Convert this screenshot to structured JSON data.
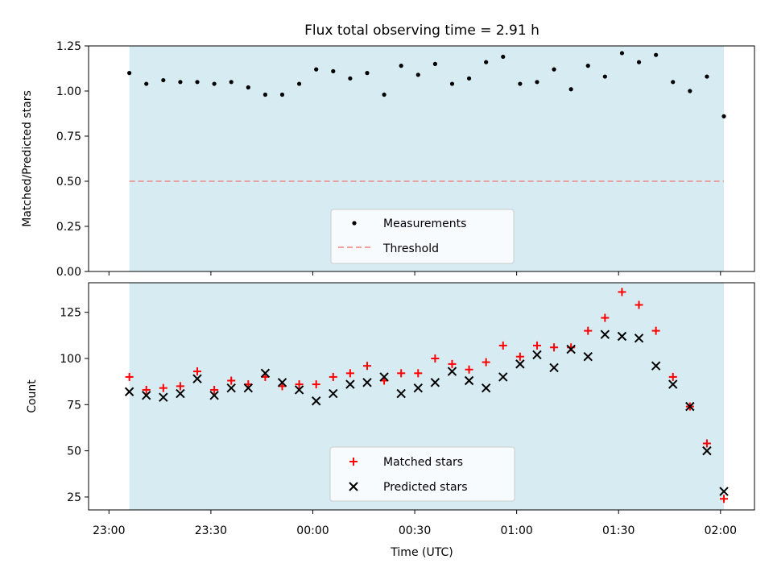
{
  "title": "Flux total observing time = 2.91 h",
  "colors": {
    "observing_band": "#add8e6",
    "measurements": "#000000",
    "threshold": "#f08080",
    "matched": "#ff0000",
    "predicted": "#000000"
  },
  "chart_data": [
    {
      "type": "scatter",
      "ylabel": "Matched/Predicted stars",
      "ylim": [
        0,
        1.25
      ],
      "yticks": [
        0,
        0.25,
        0.5,
        0.75,
        1.0,
        1.25
      ],
      "ytick_labels": [
        "0.00",
        "0.25",
        "0.50",
        "0.75",
        "1.00",
        "1.25"
      ],
      "shaded_interval": [
        "23:06",
        "02:01"
      ],
      "legend_placement": "lower-center",
      "series": [
        {
          "name": "Measurements",
          "marker": "dot",
          "x": [
            "23:06",
            "23:11",
            "23:16",
            "23:21",
            "23:26",
            "23:31",
            "23:36",
            "23:41",
            "23:46",
            "23:51",
            "23:56",
            "00:01",
            "00:06",
            "00:11",
            "00:16",
            "00:21",
            "00:26",
            "00:31",
            "00:36",
            "00:41",
            "00:46",
            "00:51",
            "00:56",
            "01:01",
            "01:06",
            "01:11",
            "01:16",
            "01:21",
            "01:26",
            "01:31",
            "01:36",
            "01:41",
            "01:46",
            "01:51",
            "01:56",
            "02:01"
          ],
          "values": [
            1.1,
            1.04,
            1.06,
            1.05,
            1.05,
            1.04,
            1.05,
            1.02,
            0.98,
            0.98,
            1.04,
            1.12,
            1.11,
            1.07,
            1.1,
            0.98,
            1.14,
            1.09,
            1.15,
            1.04,
            1.07,
            1.16,
            1.19,
            1.04,
            1.05,
            1.12,
            1.01,
            1.14,
            1.08,
            1.21,
            1.16,
            1.2,
            1.05,
            1.0,
            1.08,
            0.86
          ]
        },
        {
          "name": "Threshold",
          "line_style": "dashed",
          "value": 0.5
        }
      ]
    },
    {
      "type": "scatter",
      "xlabel": "Time (UTC)",
      "ylabel": "Count",
      "ylim": [
        18,
        141
      ],
      "yticks": [
        25,
        50,
        75,
        100,
        125
      ],
      "ytick_labels": [
        "25",
        "50",
        "75",
        "100",
        "125"
      ],
      "xticks": [
        "23:00",
        "23:30",
        "00:00",
        "00:30",
        "01:00",
        "01:30",
        "02:00"
      ],
      "xrange": [
        "22:54",
        "02:10"
      ],
      "shaded_interval": [
        "23:06",
        "02:01"
      ],
      "legend_placement": "lower-center",
      "series": [
        {
          "name": "Matched stars",
          "marker": "plus",
          "x": [
            "23:06",
            "23:11",
            "23:16",
            "23:21",
            "23:26",
            "23:31",
            "23:36",
            "23:41",
            "23:46",
            "23:51",
            "23:56",
            "00:01",
            "00:06",
            "00:11",
            "00:16",
            "00:21",
            "00:26",
            "00:31",
            "00:36",
            "00:41",
            "00:46",
            "00:51",
            "00:56",
            "01:01",
            "01:06",
            "01:11",
            "01:16",
            "01:21",
            "01:26",
            "01:31",
            "01:36",
            "01:41",
            "01:46",
            "01:51",
            "01:56",
            "02:01"
          ],
          "values": [
            90,
            83,
            84,
            85,
            93,
            83,
            88,
            86,
            90,
            85,
            86,
            86,
            90,
            92,
            96,
            88,
            92,
            92,
            100,
            97,
            94,
            98,
            107,
            101,
            107,
            106,
            106,
            115,
            122,
            136,
            129,
            115,
            90,
            74,
            54,
            24
          ]
        },
        {
          "name": "Predicted stars",
          "marker": "x",
          "x": [
            "23:06",
            "23:11",
            "23:16",
            "23:21",
            "23:26",
            "23:31",
            "23:36",
            "23:41",
            "23:46",
            "23:51",
            "23:56",
            "00:01",
            "00:06",
            "00:11",
            "00:16",
            "00:21",
            "00:26",
            "00:31",
            "00:36",
            "00:41",
            "00:46",
            "00:51",
            "00:56",
            "01:01",
            "01:06",
            "01:11",
            "01:16",
            "01:21",
            "01:26",
            "01:31",
            "01:36",
            "01:41",
            "01:46",
            "01:51",
            "01:56",
            "02:01"
          ],
          "values": [
            82,
            80,
            79,
            81,
            89,
            80,
            84,
            84,
            92,
            87,
            83,
            77,
            81,
            86,
            87,
            90,
            81,
            84,
            87,
            93,
            88,
            84,
            90,
            97,
            102,
            95,
            105,
            101,
            113,
            112,
            111,
            96,
            86,
            74,
            50,
            28
          ]
        }
      ]
    }
  ]
}
